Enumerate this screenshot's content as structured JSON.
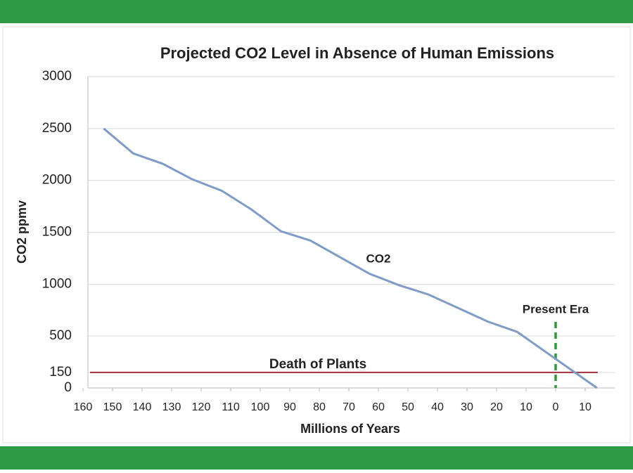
{
  "chart_data": {
    "type": "line",
    "title": "Projected CO2 Level in Absence of Human Emissions",
    "x_label": "Millions of Years",
    "y_label": "CO2 ppmv",
    "x": [
      153,
      143,
      133,
      123,
      113,
      103,
      93,
      83,
      73,
      63,
      53,
      43,
      33,
      23,
      13,
      3,
      -14
    ],
    "series": [
      {
        "name": "CO2",
        "color": "#7f9cc8",
        "values": [
          2500,
          2260,
          2160,
          2010,
          1900,
          1720,
          1510,
          1420,
          1260,
          1100,
          990,
          900,
          770,
          640,
          540,
          340,
          0
        ]
      }
    ],
    "xlim": [
      160,
      -20
    ],
    "xticks": [
      160,
      150,
      140,
      130,
      120,
      110,
      100,
      90,
      80,
      70,
      60,
      50,
      40,
      30,
      20,
      10,
      0,
      {
        "value": -10,
        "label": "10"
      }
    ],
    "ylim": [
      0,
      3000
    ],
    "yticks": [
      0,
      150,
      500,
      1000,
      1500,
      2000,
      2500,
      3000
    ],
    "grid": true,
    "threshold": {
      "value": 150,
      "label": "Death of Plants",
      "color": "#a3313f"
    },
    "marker": {
      "x": 0,
      "label": "Present Era",
      "color": "#2e9a3a"
    }
  }
}
